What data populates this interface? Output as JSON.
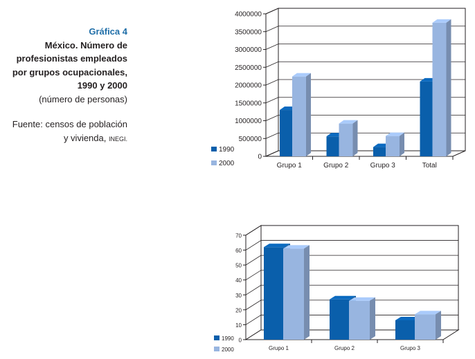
{
  "caption": {
    "title": "Gráfica 4",
    "line1": "México. Número de",
    "line2": "profesionistas empleados",
    "line3": "por grupos ocupacionales,",
    "line4": "1990 y 2000",
    "unit": "(número de personas)",
    "source1": "Fuente: censos de población",
    "source2": "y vivienda,",
    "source_org": "INEGI."
  },
  "colors": {
    "1990": "#0a5fab",
    "2000": "#98b5e0"
  },
  "chart_data": [
    {
      "type": "bar",
      "categories": [
        "Grupo 1",
        "Grupo 2",
        "Grupo 3",
        "Total"
      ],
      "series": [
        {
          "name": "1990",
          "values": [
            1300000,
            560000,
            260000,
            2100000
          ]
        },
        {
          "name": "2000",
          "values": [
            2240000,
            920000,
            570000,
            3750000
          ]
        }
      ],
      "ylim": [
        0,
        4000000
      ],
      "yticks": [
        "0",
        "500000",
        "1000000",
        "1500000",
        "2000000",
        "2500000",
        "3000000",
        "3500000",
        "4000000"
      ],
      "grid": true,
      "legend": "bottom-left"
    },
    {
      "type": "bar",
      "categories": [
        "Grupo 1",
        "Grupo 2",
        "Grupo 3"
      ],
      "series": [
        {
          "name": "1990",
          "values": [
            62,
            27,
            13
          ]
        },
        {
          "name": "2000",
          "values": [
            61,
            26,
            17
          ]
        }
      ],
      "ylim": [
        0,
        70
      ],
      "yticks": [
        "0",
        "10",
        "20",
        "30",
        "40",
        "50",
        "60",
        "70"
      ],
      "grid": true,
      "legend": "bottom-left"
    }
  ]
}
